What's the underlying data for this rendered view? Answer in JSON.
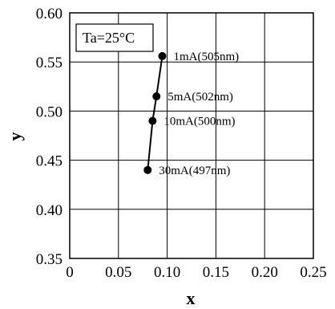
{
  "chart_data": {
    "type": "line",
    "title": "",
    "xlabel": "x",
    "ylabel": "y",
    "xlim": [
      0,
      0.25
    ],
    "ylim": [
      0.35,
      0.6
    ],
    "xticks": [
      0,
      0.05,
      0.1,
      0.15,
      0.2,
      0.25
    ],
    "yticks": [
      0.35,
      0.4,
      0.45,
      0.5,
      0.55,
      0.6
    ],
    "xtick_labels": [
      "0",
      "0.05",
      "0.10",
      "0.15",
      "0.20",
      "0.25"
    ],
    "ytick_labels": [
      "0.35",
      "0.40",
      "0.45",
      "0.50",
      "0.55",
      "0.60"
    ],
    "grid": true,
    "annotation": "Ta=25°C",
    "series": [
      {
        "points": [
          {
            "x": 0.095,
            "y": 0.556,
            "label": "1mA(505nm)"
          },
          {
            "x": 0.089,
            "y": 0.515,
            "label": "5mA(502nm)"
          },
          {
            "x": 0.085,
            "y": 0.49,
            "label": "10mA(500nm)"
          },
          {
            "x": 0.08,
            "y": 0.44,
            "label": "30mA(497nm)"
          }
        ]
      }
    ]
  }
}
